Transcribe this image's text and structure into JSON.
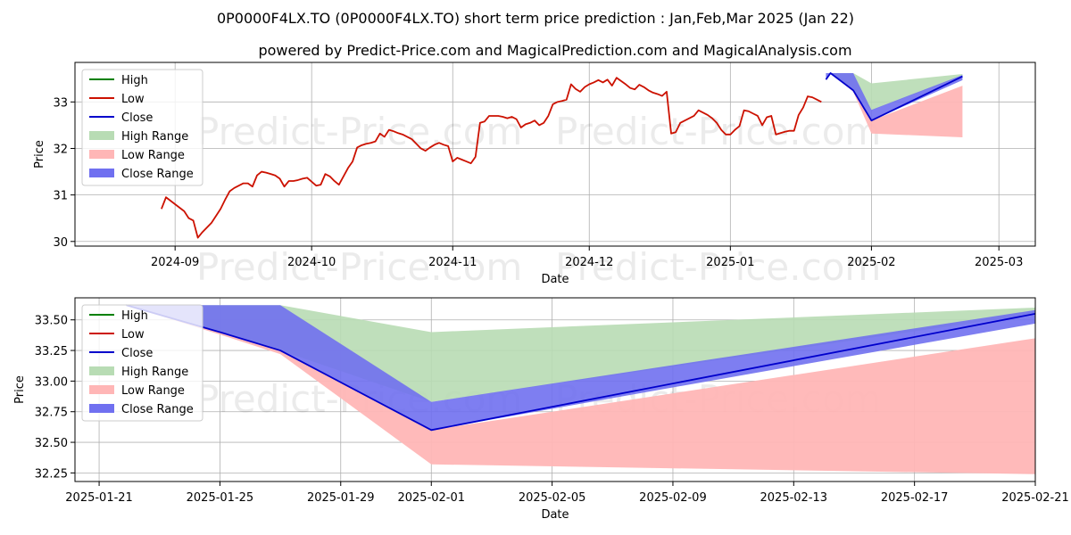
{
  "title": "0P0000F4LX.TO (0P0000F4LX.TO) short term price prediction : Jan,Feb,Mar 2025 (Jan 22)",
  "subtitle": "powered by Predict-Price.com and MagicalPrediction.com and MagicalAnalysis.com",
  "watermark": "Predict-Price.com",
  "colors": {
    "high": "#008000",
    "low": "#cc1100",
    "close": "#0000cc",
    "high_range": "#b8dcb4",
    "low_range": "#ffb6b6",
    "close_range": "#7070f0"
  },
  "chart_data": [
    {
      "type": "line",
      "xlabel": "Date",
      "ylabel": "Price",
      "ylim": [
        29.9,
        33.85
      ],
      "yticks": [
        30,
        31,
        32,
        33
      ],
      "ytick_labels": [
        "30",
        "31",
        "32",
        "33"
      ],
      "xlim_days": [
        -22,
        189
      ],
      "xticks_days": [
        0,
        30,
        61,
        91,
        122,
        153,
        181
      ],
      "xtick_labels": [
        "2024-09",
        "2024-10",
        "2024-11",
        "2024-12",
        "2025-01",
        "2025-02",
        "2025-03"
      ],
      "x_origin": "2024-09-01",
      "grid": true,
      "legend_position": "upper-left",
      "legend": [
        "High",
        "Low",
        "Close",
        "High Range",
        "Low Range",
        "Close Range"
      ],
      "low_series": {
        "name": "Low",
        "x_days": [
          -3,
          -2,
          2,
          3,
          4,
          5,
          6,
          7,
          8,
          10,
          11,
          12,
          13,
          14,
          15,
          16,
          17,
          18,
          19,
          20,
          21,
          22,
          23,
          24,
          25,
          26,
          27,
          28,
          29,
          31,
          32,
          33,
          34,
          35,
          36,
          37,
          38,
          39,
          40,
          41,
          42,
          43,
          44,
          45,
          46,
          47,
          48,
          49,
          50,
          51,
          52,
          53,
          54,
          55,
          56,
          57,
          58,
          59,
          60,
          61,
          62,
          63,
          64,
          65,
          66,
          67,
          68,
          69,
          70,
          71,
          72,
          73,
          74,
          75,
          76,
          77,
          78,
          79,
          80,
          81,
          82,
          83,
          84,
          85,
          86,
          87,
          88,
          89,
          90,
          91,
          92,
          93,
          94,
          95,
          96,
          97,
          98,
          99,
          100,
          101,
          102,
          103,
          104,
          105,
          106,
          107,
          108,
          109,
          110,
          111,
          112,
          113,
          114,
          115,
          116,
          117,
          118,
          119,
          120,
          121,
          122,
          123,
          124,
          125,
          126,
          127,
          128,
          129,
          130,
          131,
          132,
          133,
          134,
          135,
          136,
          137,
          138,
          139,
          140,
          141,
          142
        ],
        "values": [
          30.7,
          30.95,
          30.65,
          30.5,
          30.45,
          30.08,
          30.2,
          30.3,
          30.4,
          30.7,
          30.9,
          31.08,
          31.15,
          31.2,
          31.25,
          31.25,
          31.18,
          31.42,
          31.5,
          31.48,
          31.45,
          31.42,
          31.35,
          31.18,
          31.3,
          31.3,
          31.32,
          31.35,
          31.37,
          31.2,
          31.22,
          31.45,
          31.4,
          31.3,
          31.22,
          31.4,
          31.58,
          31.72,
          32.02,
          32.07,
          32.1,
          32.12,
          32.15,
          32.32,
          32.25,
          32.4,
          32.37,
          32.33,
          32.3,
          32.25,
          32.2,
          32.1,
          32.0,
          31.95,
          32.02,
          32.08,
          32.12,
          32.08,
          32.05,
          31.72,
          31.8,
          31.76,
          31.72,
          31.68,
          31.82,
          32.55,
          32.58,
          32.7,
          32.7,
          32.7,
          32.68,
          32.65,
          32.68,
          32.63,
          32.45,
          32.52,
          32.55,
          32.6,
          32.5,
          32.55,
          32.7,
          32.95,
          33.0,
          33.02,
          33.05,
          33.38,
          33.28,
          33.22,
          33.32,
          33.38,
          33.42,
          33.47,
          33.42,
          33.48,
          33.35,
          33.52,
          33.45,
          33.38,
          33.3,
          33.27,
          33.37,
          33.32,
          33.25,
          33.2,
          33.17,
          33.13,
          33.22,
          32.32,
          32.35,
          32.55,
          32.6,
          32.65,
          32.7,
          32.82,
          32.77,
          32.72,
          32.65,
          32.55,
          32.4,
          32.3,
          32.3,
          32.4,
          32.48,
          32.82,
          32.8,
          32.75,
          32.7,
          32.5,
          32.67,
          32.7,
          32.3,
          32.33,
          32.36,
          32.38,
          32.38,
          32.72,
          32.88,
          33.12,
          33.1,
          33.05,
          33.0
        ]
      },
      "close_series": {
        "name": "Close",
        "x_days": [
          143,
          144,
          149,
          153,
          173
        ],
        "values": [
          33.48,
          33.62,
          33.25,
          32.6,
          33.55
        ]
      },
      "high_range": {
        "x_days": [
          143,
          144,
          149,
          153,
          173
        ],
        "upper": [
          33.48,
          33.62,
          33.62,
          33.4,
          33.6
        ],
        "lower": [
          33.48,
          33.62,
          33.25,
          32.82,
          33.55
        ]
      },
      "low_range": {
        "x_days": [
          143,
          144,
          149,
          153,
          173
        ],
        "upper": [
          33.48,
          33.62,
          33.25,
          32.6,
          33.35
        ],
        "lower": [
          33.48,
          33.62,
          33.22,
          32.32,
          32.24
        ]
      },
      "close_range": {
        "x_days": [
          143,
          144,
          149,
          153,
          173
        ],
        "upper": [
          33.62,
          33.62,
          33.62,
          32.83,
          33.58
        ],
        "lower": [
          33.48,
          33.62,
          33.25,
          32.6,
          33.47
        ]
      }
    },
    {
      "type": "line",
      "xlabel": "Date",
      "ylabel": "Price",
      "ylim": [
        32.18,
        33.68
      ],
      "yticks": [
        32.25,
        32.5,
        32.75,
        33.0,
        33.25,
        33.5
      ],
      "ytick_labels": [
        "32.25",
        "32.50",
        "32.75",
        "33.00",
        "33.25",
        "33.50"
      ],
      "xlim_days": [
        -0.8,
        31.0
      ],
      "xticks_days": [
        0,
        4,
        8,
        11,
        15,
        19,
        23,
        27,
        31
      ],
      "xtick_labels": [
        "2025-01-21",
        "2025-01-25",
        "2025-01-29",
        "2025-02-01",
        "2025-02-05",
        "2025-02-09",
        "2025-02-13",
        "2025-02-17",
        "2025-02-21"
      ],
      "x_origin": "2025-01-21",
      "grid": true,
      "legend_position": "upper-left",
      "legend": [
        "High",
        "Low",
        "Close",
        "High Range",
        "Low Range",
        "Close Range"
      ],
      "close_series": {
        "name": "Close",
        "x_days": [
          0.9,
          4,
          6,
          11,
          31
        ],
        "values": [
          33.62,
          33.4,
          33.25,
          32.6,
          33.55
        ]
      },
      "high_range": {
        "x_days": [
          0.9,
          4,
          6,
          11,
          31
        ],
        "upper": [
          33.62,
          33.62,
          33.62,
          33.4,
          33.6
        ],
        "lower": [
          33.62,
          33.4,
          33.25,
          32.83,
          33.55
        ]
      },
      "low_range": {
        "x_days": [
          0.9,
          4,
          6,
          11,
          31
        ],
        "upper": [
          33.62,
          33.4,
          33.25,
          32.6,
          33.35
        ],
        "lower": [
          33.62,
          33.38,
          33.22,
          32.32,
          32.24
        ]
      },
      "close_range": {
        "x_days": [
          0.9,
          4,
          6,
          11,
          31
        ],
        "upper": [
          33.62,
          33.62,
          33.62,
          32.83,
          33.58
        ],
        "lower": [
          33.62,
          33.4,
          33.25,
          32.6,
          33.47
        ]
      }
    }
  ]
}
